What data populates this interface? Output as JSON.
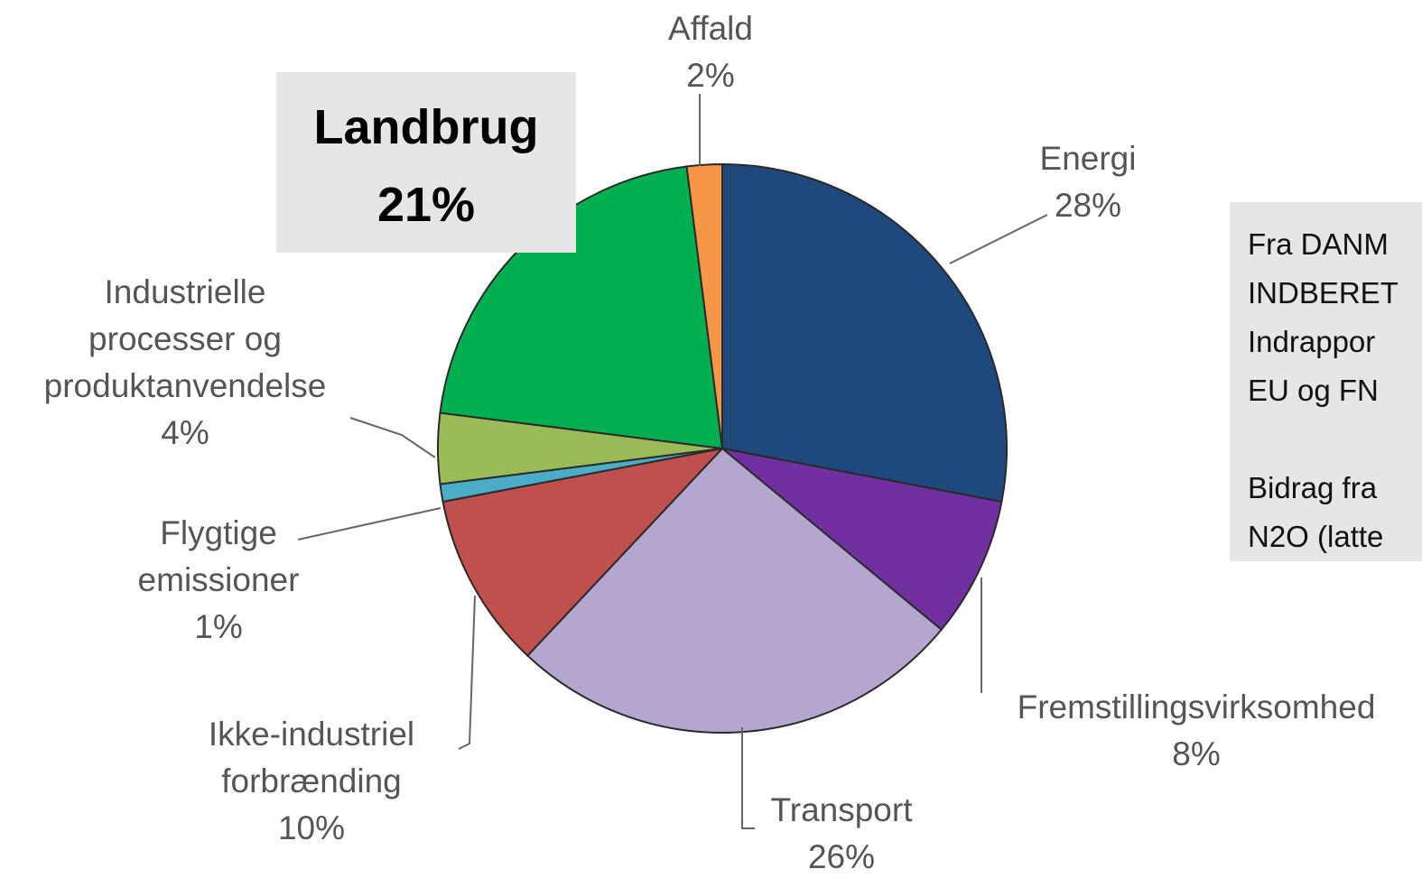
{
  "chart_data": {
    "type": "pie",
    "categories": [
      "Energi",
      "Fremstillingsvirksomhed",
      "Transport",
      "Ikke-industriel\nforbrænding",
      "Flygtige\nemissioner",
      "Industrielle\nprocesser og\nproduktanvendelse",
      "Landbrug",
      "Affald"
    ],
    "values": [
      28,
      8,
      26,
      10,
      1,
      4,
      21,
      2
    ],
    "value_labels": [
      "28%",
      "8%",
      "26%",
      "10%",
      "1%",
      "4%",
      "21%",
      "2%"
    ],
    "colors": [
      "#1f497d",
      "#7030a0",
      "#b4a7cf",
      "#c0504d",
      "#4bacc6",
      "#9bbb59",
      "#00b050",
      "#f79646"
    ],
    "annotations": [
      "Fra DANM",
      "INDBERET",
      "Indrappor",
      "EU og FN",
      "",
      "Bidrag fra",
      "N2O (latte"
    ]
  }
}
